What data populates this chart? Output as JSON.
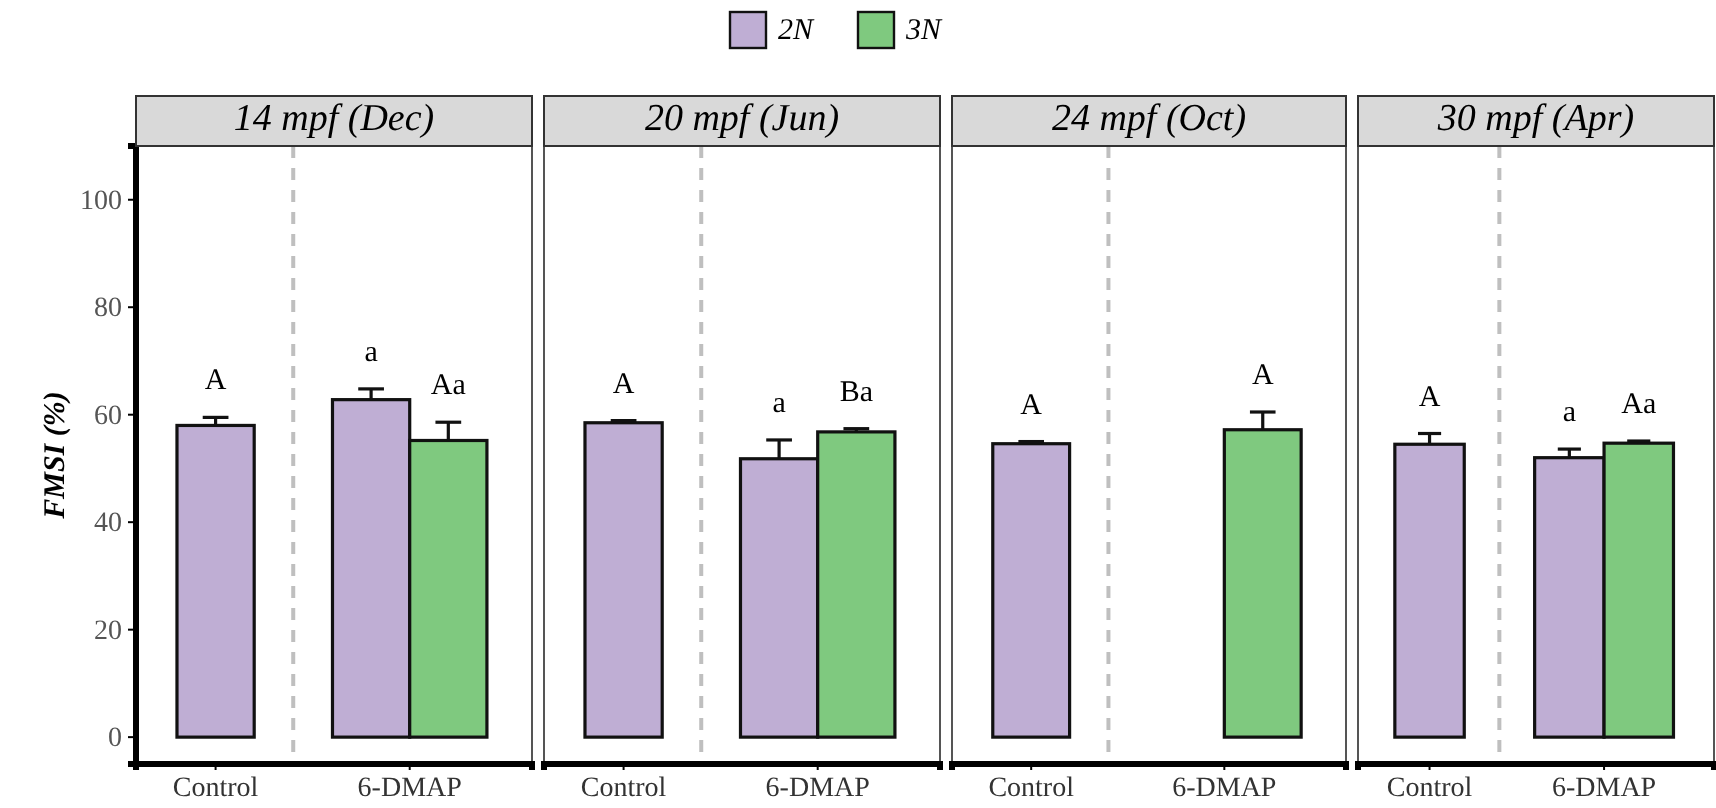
{
  "chart_data": [
    {
      "type": "bar",
      "title": "14 mpf (Dec)",
      "ylabel": "FMSI (%)",
      "categories": [
        "Control",
        "6-DMAP"
      ],
      "ylim": [
        -5,
        110
      ],
      "yticks": [
        0,
        20,
        40,
        60,
        80,
        100
      ],
      "legend": "top",
      "series": [
        {
          "name": "2N",
          "color": "#bfaed4",
          "values": [
            58,
            62.8
          ],
          "errors": [
            [
              58,
              59.5
            ],
            [
              62.8,
              64.8
            ]
          ]
        },
        {
          "name": "3N",
          "color": "#7fc97f",
          "values": [
            null,
            55.2
          ],
          "errors": [
            null,
            [
              55.2,
              58.6
            ]
          ]
        }
      ],
      "annotations": [
        "A",
        "a",
        "Aa"
      ]
    },
    {
      "type": "bar",
      "title": "20 mpf (Jun)",
      "categories": [
        "Control",
        "6-DMAP"
      ],
      "ylim": [
        -5,
        110
      ],
      "tick_labels": "x",
      "series": [
        {
          "color": "#bfaed4",
          "values": [
            58.5,
            51.8
          ],
          "errors": [
            [
              58.5,
              58.9
            ],
            [
              51.8,
              55.3
            ]
          ]
        },
        {
          "color": "#7fc97f",
          "values": [
            null,
            56.8
          ],
          "errors": [
            null,
            [
              56.8,
              57.4
            ]
          ]
        }
      ],
      "annotations": [
        "A",
        "a",
        "Ba"
      ]
    },
    {
      "type": "bar",
      "title": "24 mpf (Oct)",
      "categories": [
        "Control",
        "6-DMAP"
      ],
      "ylim": [
        -5,
        110
      ],
      "tick_labels": "x",
      "series": [
        {
          "color": "#bfaed4",
          "values": [
            54.6,
            null
          ],
          "errors": [
            [
              54.6,
              55
            ],
            null
          ]
        },
        {
          "color": "#7fc97f",
          "values": [
            null,
            57.2
          ],
          "errors": [
            null,
            [
              57.2,
              60.5
            ]
          ]
        }
      ],
      "annotations": [
        "A",
        "A"
      ]
    },
    {
      "type": "bar",
      "title": "30 mpf (Apr)",
      "categories": [
        "Control",
        "6-DMAP"
      ],
      "ylim": [
        -5,
        110
      ],
      "tick_labels": "x",
      "series": [
        {
          "color": "#bfaed4",
          "values": [
            54.5,
            52
          ],
          "errors": [
            [
              54.5,
              56.5
            ],
            [
              52,
              53.6
            ]
          ]
        },
        {
          "color": "#7fc97f",
          "values": [
            null,
            54.7
          ],
          "errors": [
            null,
            [
              54.7,
              55.1
            ]
          ]
        }
      ],
      "annotations": [
        "A",
        "a",
        "Aa"
      ]
    }
  ]
}
